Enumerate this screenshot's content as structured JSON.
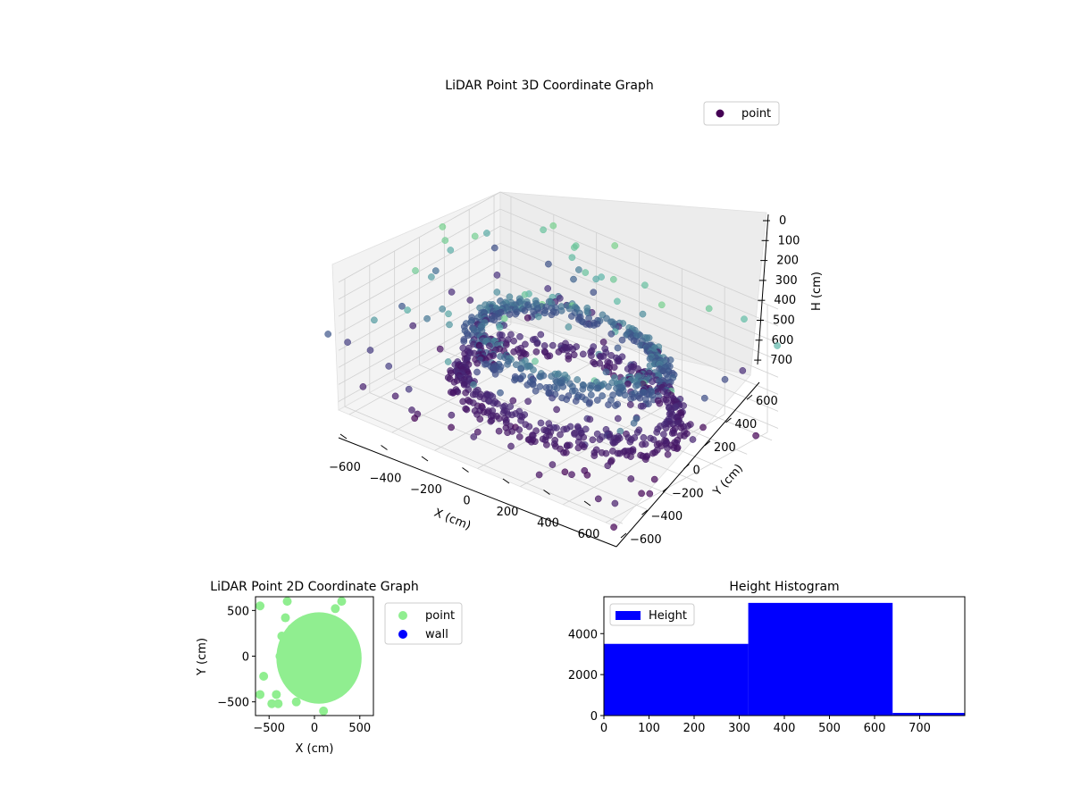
{
  "chart_data": [
    {
      "type": "scatter3d",
      "title": "LiDAR Point 3D Coordinate Graph",
      "xlabel": "X (cm)",
      "ylabel": "Y (cm)",
      "zlabel": "H (cm)",
      "xlim": [
        -650,
        650
      ],
      "ylim": [
        -650,
        650
      ],
      "zlim": [
        0,
        750
      ],
      "z_inverted": true,
      "x_ticks": [
        "−600",
        "−400",
        "−200",
        "0",
        "200",
        "400",
        "600"
      ],
      "y_ticks": [
        "−600",
        "−400",
        "−200",
        "0",
        "200",
        "400",
        "600"
      ],
      "z_ticks": [
        "0",
        "100",
        "200",
        "300",
        "400",
        "500",
        "600",
        "700"
      ],
      "grid": true,
      "legend": {
        "position": "top-right",
        "entries": [
          {
            "label": "point",
            "color": "#440154"
          }
        ]
      },
      "colormap": "viridis (by height)",
      "series": [
        {
          "name": "point",
          "description_points": [
            {
              "x": -150,
              "y": 100,
              "h": 250
            },
            {
              "x": 0,
              "y": 300,
              "h": 230
            },
            {
              "x": 250,
              "y": 350,
              "h": 240
            },
            {
              "x": 450,
              "y": 200,
              "h": 260
            },
            {
              "x": 500,
              "y": -50,
              "h": 300
            },
            {
              "x": 400,
              "y": -250,
              "h": 320
            },
            {
              "x": 150,
              "y": -350,
              "h": 340
            },
            {
              "x": -150,
              "y": -300,
              "h": 330
            },
            {
              "x": -350,
              "y": -100,
              "h": 320
            },
            {
              "x": -300,
              "y": 150,
              "h": 300
            },
            {
              "x": -200,
              "y": 50,
              "h": 500
            },
            {
              "x": 100,
              "y": 250,
              "h": 520
            },
            {
              "x": 400,
              "y": 100,
              "h": 540
            },
            {
              "x": 350,
              "y": -200,
              "h": 560
            },
            {
              "x": 0,
              "y": -350,
              "h": 580
            },
            {
              "x": -300,
              "y": -200,
              "h": 560
            },
            {
              "x": -450,
              "y": 0,
              "h": 600
            },
            {
              "x": -300,
              "y": 250,
              "h": 620
            },
            {
              "x": 500,
              "y": 400,
              "h": 100
            },
            {
              "x": -550,
              "y": 550,
              "h": 80
            },
            {
              "x": 600,
              "y": -500,
              "h": 600
            },
            {
              "x": -600,
              "y": -550,
              "h": 650
            }
          ]
        }
      ]
    },
    {
      "type": "scatter",
      "title": "LiDAR Point 2D Coordinate Graph",
      "xlabel": "X (cm)",
      "ylabel": "Y (cm)",
      "xlim": [
        -650,
        650
      ],
      "ylim": [
        -650,
        650
      ],
      "x_ticks": [
        "−500",
        "0",
        "500"
      ],
      "y_ticks": [
        "500",
        "0",
        "−500"
      ],
      "legend": {
        "position": "outside-right",
        "entries": [
          {
            "label": "point",
            "color": "#90ee90"
          },
          {
            "label": "wall",
            "color": "#0000ff"
          }
        ]
      },
      "blob": {
        "cx": 50,
        "cy": -20,
        "rx": 470,
        "ry": 500
      },
      "outliers": [
        {
          "x": -600,
          "y": 550
        },
        {
          "x": -600,
          "y": -420
        },
        {
          "x": -560,
          "y": -220
        },
        {
          "x": -470,
          "y": -520
        },
        {
          "x": -420,
          "y": -420
        },
        {
          "x": -400,
          "y": -520
        },
        {
          "x": -320,
          "y": 420
        },
        {
          "x": -300,
          "y": 600
        },
        {
          "x": -250,
          "y": 300
        },
        {
          "x": 300,
          "y": 600
        },
        {
          "x": 230,
          "y": 520
        },
        {
          "x": -200,
          "y": -500
        },
        {
          "x": 100,
          "y": -600
        },
        {
          "x": -380,
          "y": 0
        },
        {
          "x": -360,
          "y": 220
        }
      ]
    },
    {
      "type": "histogram",
      "title": "Height Histogram",
      "xlim": [
        0,
        800
      ],
      "ylim": [
        0,
        5800
      ],
      "x_ticks": [
        "0",
        "100",
        "200",
        "300",
        "400",
        "500",
        "600",
        "700"
      ],
      "y_ticks": [
        "0",
        "2000",
        "4000"
      ],
      "legend": {
        "position": "top-left",
        "entries": [
          {
            "label": "Height",
            "color": "#0000ff"
          }
        ]
      },
      "bins": [
        {
          "start": 0,
          "end": 320,
          "count": 3500
        },
        {
          "start": 320,
          "end": 640,
          "count": 5500
        },
        {
          "start": 640,
          "end": 800,
          "count": 130
        }
      ]
    }
  ]
}
